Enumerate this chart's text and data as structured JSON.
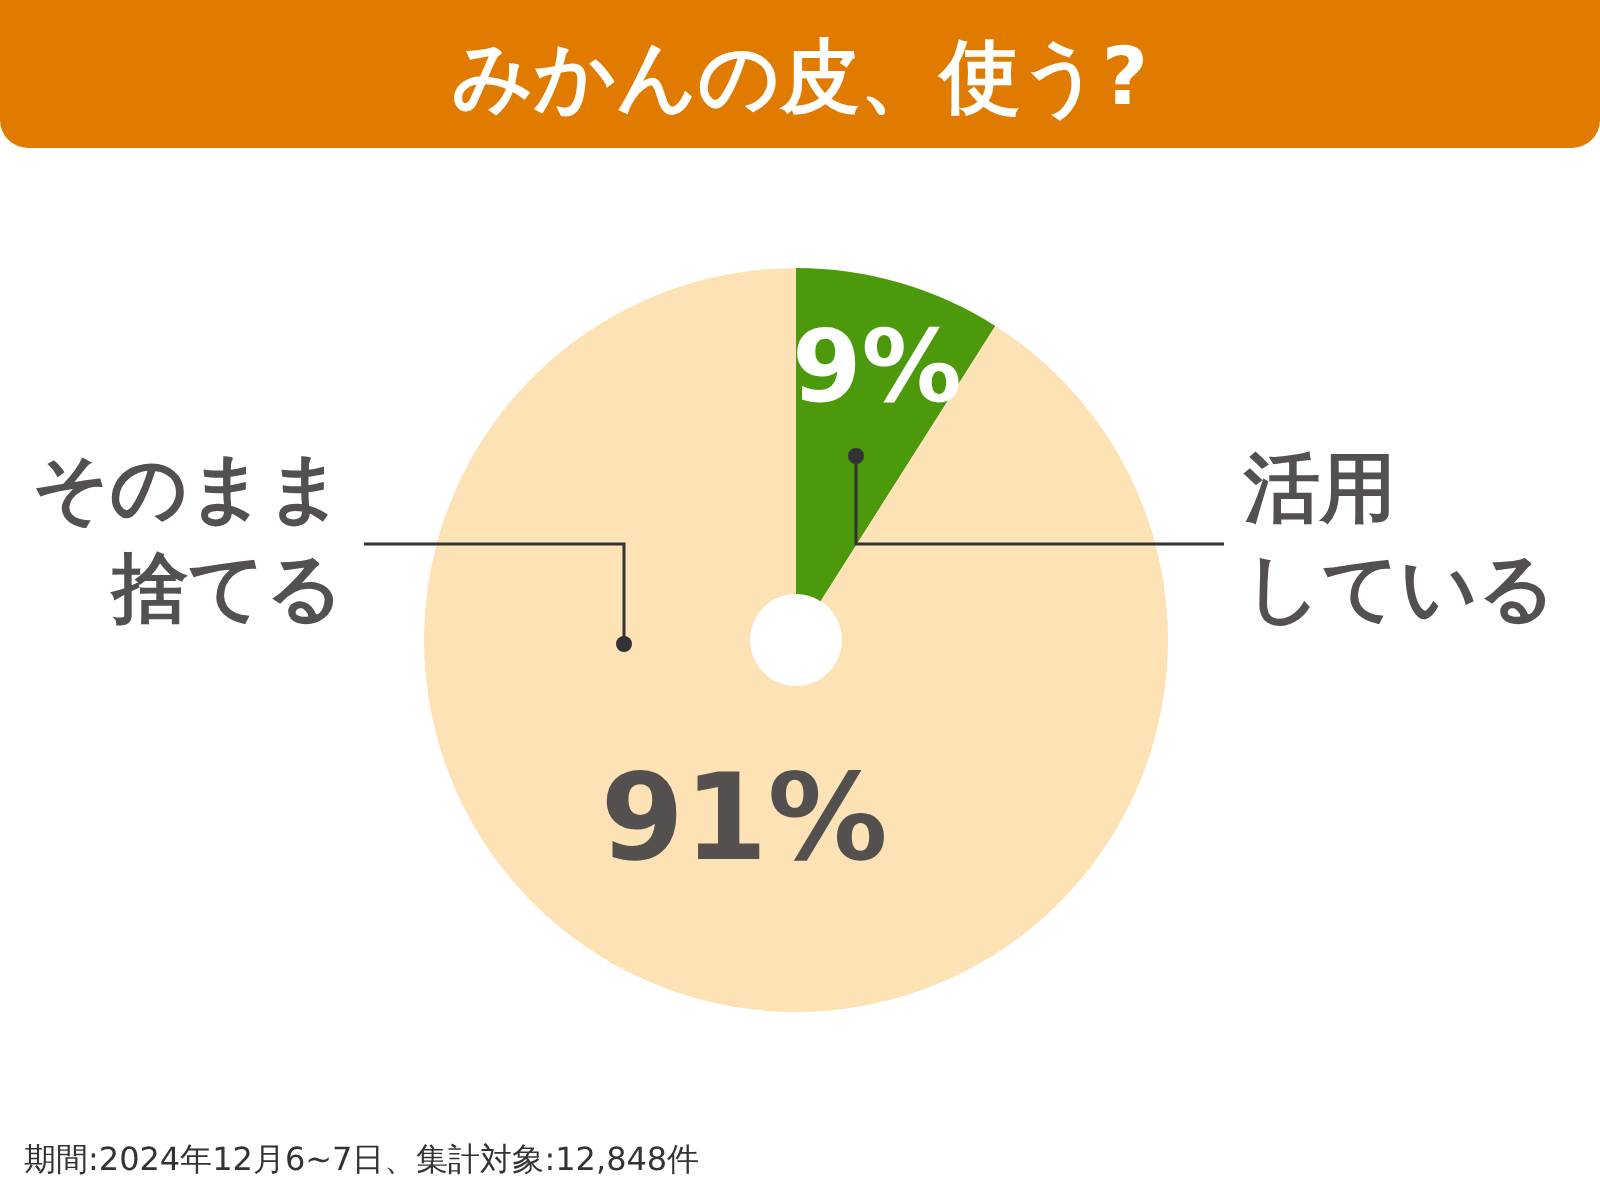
{
  "chart_data": {
    "type": "donut",
    "title": "みかんの皮、使う?",
    "categories": [
      "活用している",
      "そのまま捨てる"
    ],
    "values": [
      9,
      91
    ],
    "colors": [
      "#4c9a0c",
      "#fde2b6"
    ],
    "value_labels": [
      "9%",
      "91%"
    ],
    "annotations": [
      "期間:2024年12月6~7日、集計対象:12,848件"
    ]
  }
}
